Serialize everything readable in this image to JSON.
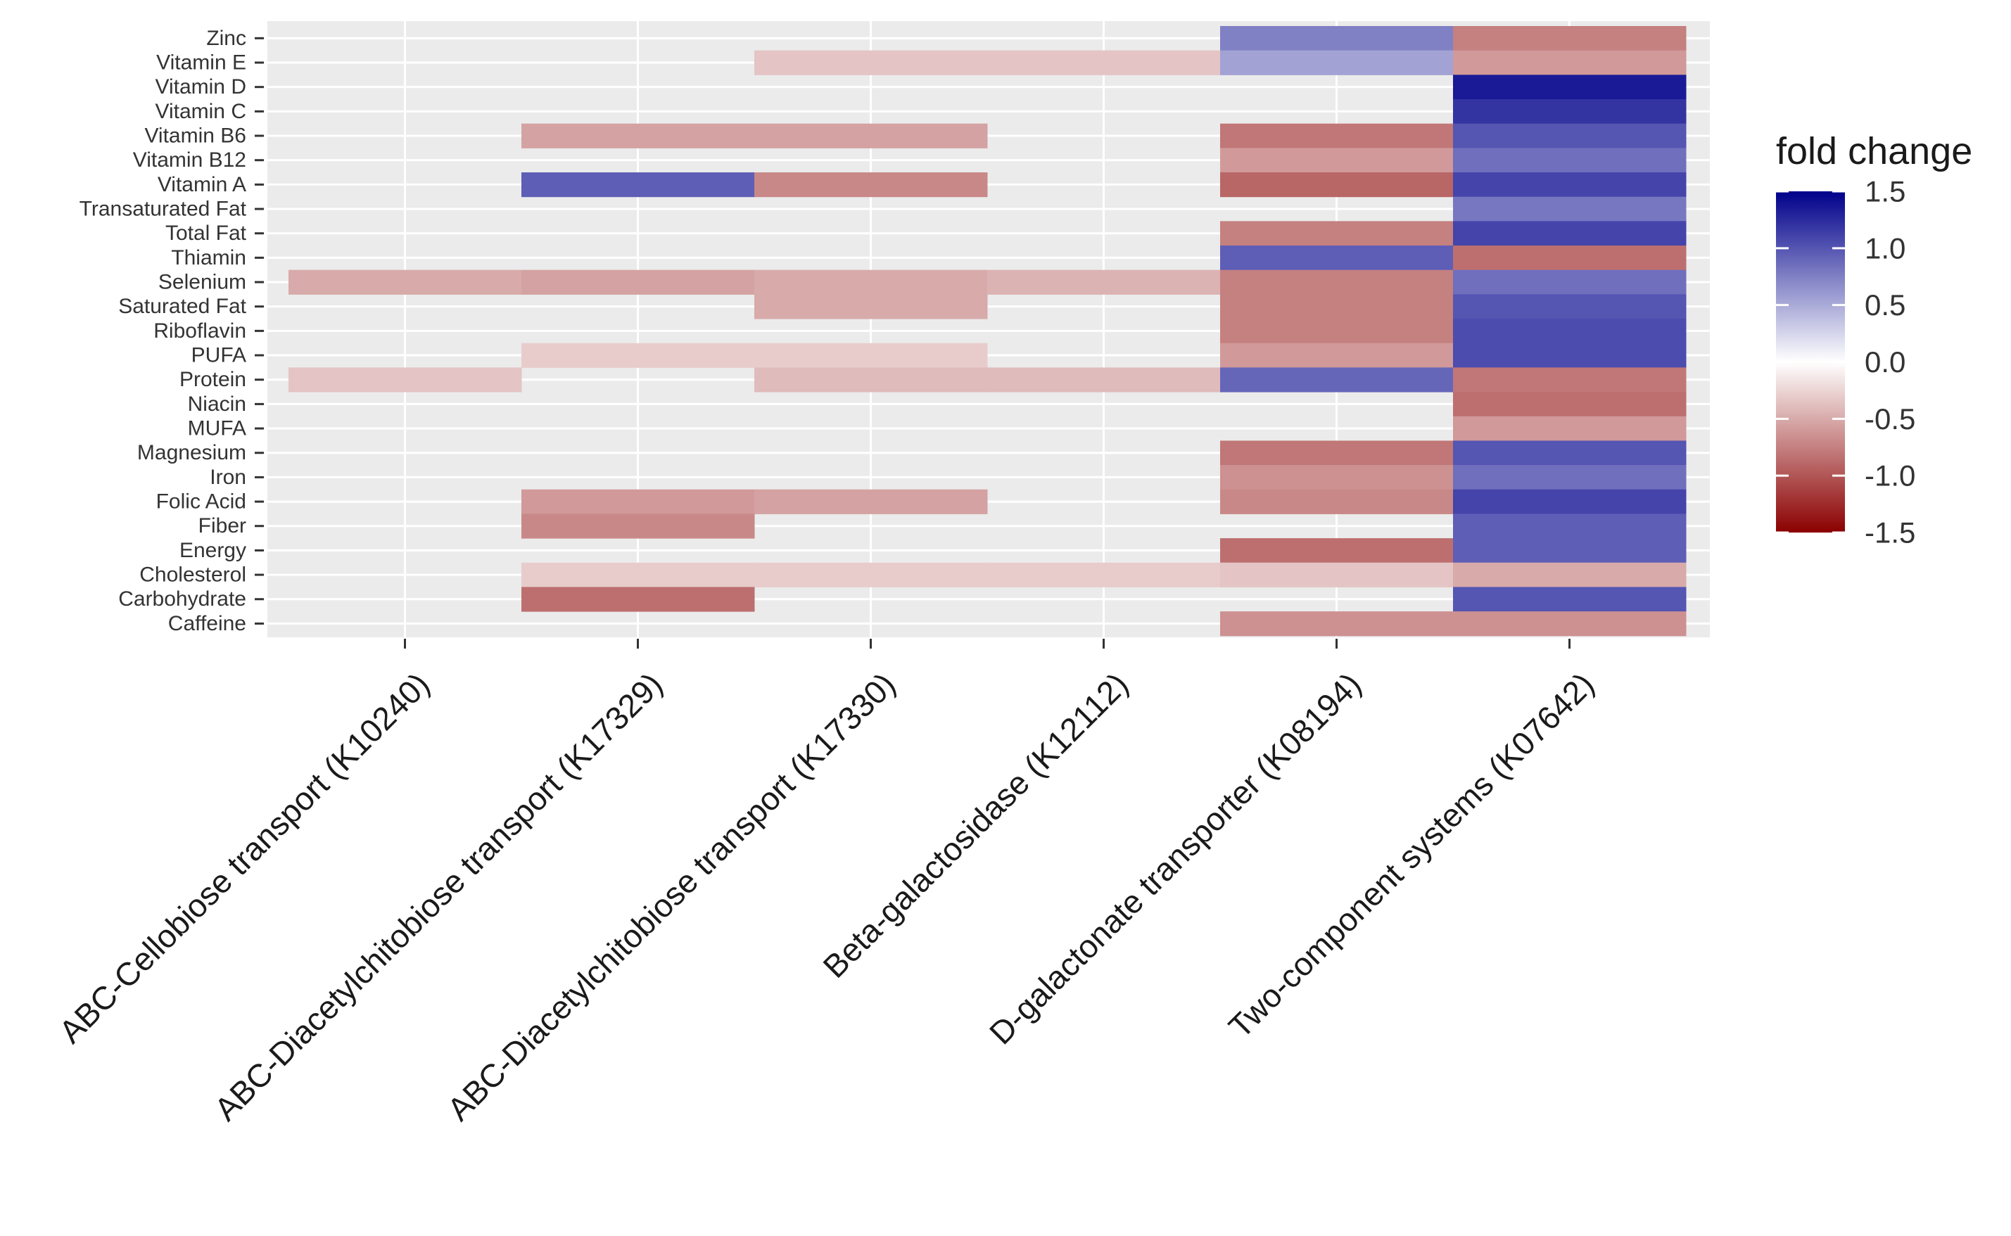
{
  "chart_data": {
    "type": "heatmap",
    "title": "",
    "xlabel": "",
    "ylabel": "",
    "x_categories": [
      "ABC-Cellobiose transport (K10240)",
      "ABC-Diacetylchitobiose transport (K17329)",
      "ABC-Diacetylchitobiose transport (K17330)",
      "Beta-galactosidase (K12112)",
      "D-galactonate transporter (K08194)",
      "Two-component systems (K07642)"
    ],
    "y_categories": [
      "Zinc",
      "Vitamin E",
      "Vitamin D",
      "Vitamin C",
      "Vitamin B6",
      "Vitamin B12",
      "Vitamin A",
      "Transaturated Fat",
      "Total Fat",
      "Thiamin",
      "Selenium",
      "Saturated Fat",
      "Riboflavin",
      "PUFA",
      "Protein",
      "Niacin",
      "MUFA",
      "Magnesium",
      "Iron",
      "Folic Acid",
      "Fiber",
      "Energy",
      "Cholesterol",
      "Carbohydrate",
      "Caffeine"
    ],
    "values": [
      [
        null,
        null,
        null,
        null,
        0.75,
        -0.75
      ],
      [
        null,
        null,
        -0.35,
        -0.35,
        0.55,
        -0.6
      ],
      [
        null,
        null,
        null,
        null,
        null,
        1.35
      ],
      [
        null,
        null,
        null,
        null,
        null,
        1.2
      ],
      [
        null,
        -0.55,
        -0.55,
        null,
        -0.8,
        1.0
      ],
      [
        null,
        null,
        null,
        null,
        -0.6,
        0.85
      ],
      [
        null,
        0.95,
        -0.7,
        null,
        -0.9,
        1.1
      ],
      [
        null,
        null,
        null,
        null,
        null,
        0.8
      ],
      [
        null,
        null,
        null,
        null,
        -0.75,
        1.1
      ],
      [
        null,
        null,
        null,
        null,
        0.95,
        -0.85
      ],
      [
        -0.5,
        -0.55,
        -0.5,
        -0.45,
        -0.75,
        0.85
      ],
      [
        null,
        null,
        -0.5,
        null,
        -0.75,
        1.0
      ],
      [
        null,
        null,
        null,
        null,
        -0.75,
        1.05
      ],
      [
        null,
        -0.3,
        -0.3,
        null,
        -0.6,
        1.05
      ],
      [
        -0.35,
        null,
        -0.4,
        -0.4,
        0.9,
        -0.8
      ],
      [
        null,
        null,
        null,
        null,
        null,
        -0.85
      ],
      [
        null,
        null,
        null,
        null,
        null,
        -0.6
      ],
      [
        null,
        null,
        null,
        null,
        -0.8,
        1.0
      ],
      [
        null,
        null,
        null,
        null,
        -0.65,
        0.85
      ],
      [
        null,
        -0.6,
        -0.55,
        null,
        -0.7,
        1.1
      ],
      [
        null,
        -0.7,
        null,
        null,
        null,
        0.95
      ],
      [
        null,
        null,
        null,
        null,
        -0.85,
        0.95
      ],
      [
        null,
        -0.3,
        -0.3,
        -0.3,
        -0.35,
        -0.5
      ],
      [
        null,
        -0.85,
        null,
        null,
        null,
        1.0
      ],
      [
        null,
        null,
        null,
        null,
        -0.65,
        -0.65
      ]
    ],
    "legend": {
      "title": "fold change",
      "range": [
        -1.5,
        1.5
      ],
      "breaks": [
        1.5,
        1.0,
        0.5,
        0.0,
        -0.5,
        -1.0,
        -1.5
      ],
      "labels": [
        "1.5",
        "1.0",
        "0.5",
        "0.0",
        "-0.5",
        "-1.0",
        "-1.5"
      ],
      "placement": "right"
    },
    "colors": {
      "low": "#8b0000",
      "mid": "#ffffff",
      "high": "#00008b",
      "panel_background": "#ebebeb",
      "grid": "#ffffff"
    }
  }
}
